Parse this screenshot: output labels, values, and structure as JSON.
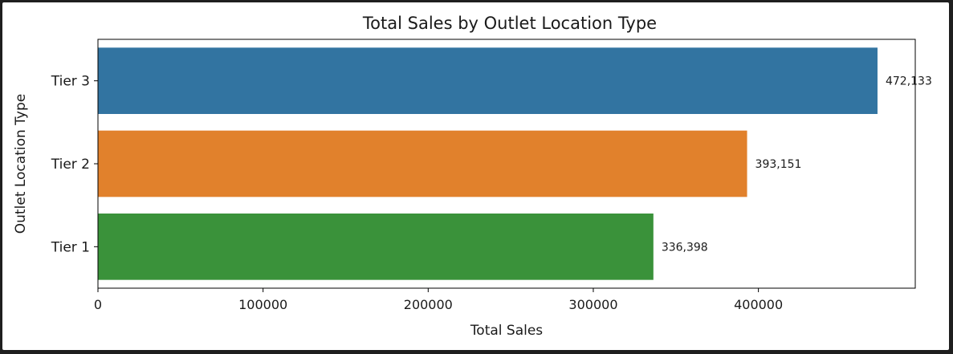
{
  "chart_data": {
    "type": "bar",
    "orientation": "horizontal",
    "title": "Total Sales by Outlet Location Type",
    "xlabel": "Total Sales",
    "ylabel": "Outlet Location Type",
    "categories": [
      "Tier 3",
      "Tier 2",
      "Tier 1"
    ],
    "values": [
      472133,
      393151,
      336398
    ],
    "data_labels": [
      "472,133",
      "393,151",
      "336,398"
    ],
    "colors": [
      "#3274a1",
      "#e1812c",
      "#3a923a"
    ],
    "xlim": [
      0,
      495000
    ],
    "xticks": [
      0,
      100000,
      200000,
      300000,
      400000
    ],
    "xtick_labels": [
      "0",
      "100000",
      "200000",
      "300000",
      "400000"
    ],
    "grid": false,
    "legend": "none"
  }
}
